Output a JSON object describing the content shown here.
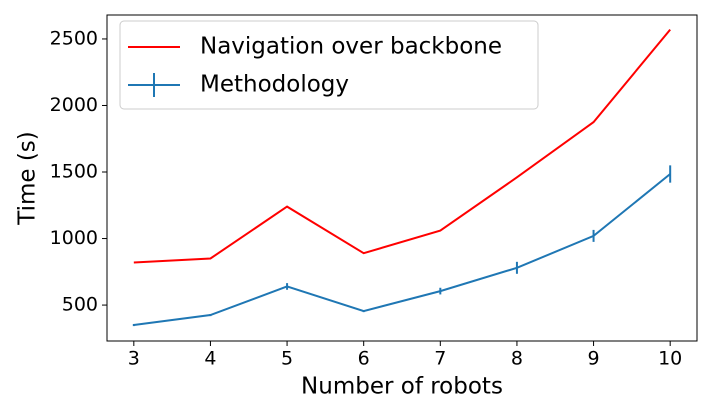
{
  "chart_data": {
    "type": "line",
    "x_label": "Number of robots",
    "y_label": "Time (s)",
    "x": [
      3,
      4,
      5,
      6,
      7,
      8,
      9,
      10
    ],
    "series": [
      {
        "name": "Navigation over backbone",
        "color": "#ff0000",
        "values": [
          820,
          850,
          1240,
          890,
          1060,
          1460,
          1875,
          2570
        ]
      },
      {
        "name": "Methodology",
        "color": "#1f77b4",
        "values": [
          350,
          425,
          640,
          455,
          605,
          780,
          1020,
          1485
        ],
        "errors": [
          8,
          8,
          25,
          8,
          25,
          45,
          45,
          65
        ]
      }
    ],
    "xlim": [
      2.65,
      10.35
    ],
    "xticks": [
      3,
      4,
      5,
      6,
      7,
      8,
      9,
      10
    ],
    "ylim": [
      230,
      2680
    ],
    "yticks": [
      500,
      1000,
      1500,
      2000,
      2500
    ],
    "legend": "upper left",
    "grid": false
  }
}
